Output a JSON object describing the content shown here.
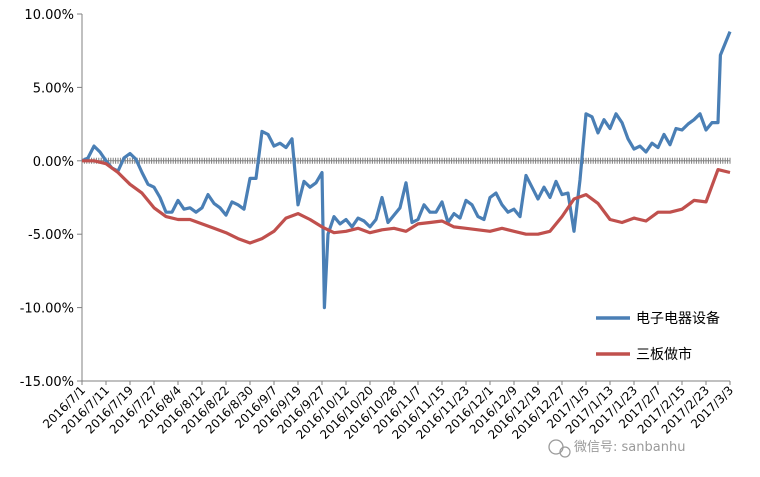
{
  "chart_data": {
    "type": "line",
    "title": "",
    "xlabel": "",
    "ylabel": "",
    "ylim": [
      -15,
      10
    ],
    "y_ticks": [
      10,
      5,
      0,
      -5,
      -10,
      -15
    ],
    "y_tick_labels": [
      "10.00%",
      "5.00%",
      "0.00%",
      "-5.00%",
      "-10.00%",
      "-15.00%"
    ],
    "x_tick_labels": [
      "2016/7/1",
      "2016/7/11",
      "2016/7/19",
      "2016/7/27",
      "2016/8/4",
      "2016/8/12",
      "2016/8/22",
      "2016/8/30",
      "2016/9/7",
      "2016/9/19",
      "2016/9/27",
      "2016/10/12",
      "2016/10/20",
      "2016/10/28",
      "2016/11/7",
      "2016/11/15",
      "2016/11/23",
      "2016/12/1",
      "2016/12/9",
      "2016/12/19",
      "2016/12/27",
      "2017/1/5",
      "2017/1/13",
      "2017/1/23",
      "2017/2/7",
      "2017/2/15",
      "2017/2/23",
      "2017/3/3"
    ],
    "grid": false,
    "legend_position": "right",
    "series": [
      {
        "name": "电子电器设备",
        "color": "#4a7fb5",
        "points": [
          [
            0,
            0
          ],
          [
            0.25,
            0.2
          ],
          [
            0.5,
            1.0
          ],
          [
            0.75,
            0.6
          ],
          [
            1,
            0
          ],
          [
            1.25,
            -0.5
          ],
          [
            1.5,
            -0.7
          ],
          [
            1.75,
            0.2
          ],
          [
            2,
            0.5
          ],
          [
            2.25,
            0.1
          ],
          [
            2.5,
            -0.8
          ],
          [
            2.75,
            -1.6
          ],
          [
            3,
            -1.8
          ],
          [
            3.25,
            -2.5
          ],
          [
            3.5,
            -3.5
          ],
          [
            3.75,
            -3.5
          ],
          [
            4,
            -2.7
          ],
          [
            4.25,
            -3.3
          ],
          [
            4.5,
            -3.2
          ],
          [
            4.75,
            -3.5
          ],
          [
            5,
            -3.2
          ],
          [
            5.25,
            -2.3
          ],
          [
            5.5,
            -2.9
          ],
          [
            5.75,
            -3.2
          ],
          [
            6,
            -3.7
          ],
          [
            6.25,
            -2.8
          ],
          [
            6.5,
            -3.0
          ],
          [
            6.75,
            -3.3
          ],
          [
            7,
            -1.2
          ],
          [
            7.25,
            -1.2
          ],
          [
            7.5,
            2.0
          ],
          [
            7.75,
            1.8
          ],
          [
            8,
            1.0
          ],
          [
            8.25,
            1.2
          ],
          [
            8.5,
            0.9
          ],
          [
            8.75,
            1.5
          ],
          [
            9,
            -3.0
          ],
          [
            9.25,
            -1.4
          ],
          [
            9.5,
            -1.8
          ],
          [
            9.75,
            -1.5
          ],
          [
            10,
            -0.8
          ],
          [
            10.1,
            -10.0
          ],
          [
            10.25,
            -5.0
          ],
          [
            10.5,
            -3.8
          ],
          [
            10.75,
            -4.3
          ],
          [
            11,
            -4.0
          ],
          [
            11.25,
            -4.5
          ],
          [
            11.5,
            -3.9
          ],
          [
            11.75,
            -4.1
          ],
          [
            12,
            -4.5
          ],
          [
            12.25,
            -4.0
          ],
          [
            12.5,
            -2.5
          ],
          [
            12.75,
            -4.2
          ],
          [
            13,
            -3.7
          ],
          [
            13.25,
            -3.2
          ],
          [
            13.5,
            -1.5
          ],
          [
            13.75,
            -4.2
          ],
          [
            14,
            -4.0
          ],
          [
            14.25,
            -3.0
          ],
          [
            14.5,
            -3.5
          ],
          [
            14.75,
            -3.5
          ],
          [
            15,
            -2.8
          ],
          [
            15.25,
            -4.2
          ],
          [
            15.5,
            -3.6
          ],
          [
            15.75,
            -3.9
          ],
          [
            16,
            -2.7
          ],
          [
            16.25,
            -3.0
          ],
          [
            16.5,
            -3.8
          ],
          [
            16.75,
            -4.0
          ],
          [
            17,
            -2.5
          ],
          [
            17.25,
            -2.2
          ],
          [
            17.5,
            -3.0
          ],
          [
            17.75,
            -3.5
          ],
          [
            18,
            -3.3
          ],
          [
            18.25,
            -3.8
          ],
          [
            18.5,
            -1.0
          ],
          [
            18.75,
            -1.8
          ],
          [
            19,
            -2.6
          ],
          [
            19.25,
            -1.8
          ],
          [
            19.5,
            -2.5
          ],
          [
            19.75,
            -1.4
          ],
          [
            20,
            -2.3
          ],
          [
            20.25,
            -2.2
          ],
          [
            20.5,
            -4.8
          ],
          [
            20.75,
            -1.3
          ],
          [
            21,
            3.2
          ],
          [
            21.25,
            3.0
          ],
          [
            21.5,
            1.9
          ],
          [
            21.75,
            2.8
          ],
          [
            22,
            2.2
          ],
          [
            22.25,
            3.2
          ],
          [
            22.5,
            2.6
          ],
          [
            22.75,
            1.5
          ],
          [
            23,
            0.8
          ],
          [
            23.25,
            1.0
          ],
          [
            23.5,
            0.6
          ],
          [
            23.75,
            1.2
          ],
          [
            24,
            0.9
          ],
          [
            24.25,
            1.8
          ],
          [
            24.5,
            1.1
          ],
          [
            24.75,
            2.2
          ],
          [
            25,
            2.1
          ],
          [
            25.25,
            2.5
          ],
          [
            25.5,
            2.8
          ],
          [
            25.75,
            3.2
          ],
          [
            26,
            2.1
          ],
          [
            26.25,
            2.6
          ],
          [
            26.5,
            2.6
          ],
          [
            26.6,
            7.2
          ],
          [
            26.8,
            8.0
          ],
          [
            27,
            8.8
          ]
        ]
      },
      {
        "name": "三板做市",
        "color": "#c0504d",
        "points": [
          [
            0,
            0
          ],
          [
            0.5,
            0
          ],
          [
            1,
            -0.2
          ],
          [
            1.5,
            -0.8
          ],
          [
            2,
            -1.6
          ],
          [
            2.5,
            -2.2
          ],
          [
            3,
            -3.2
          ],
          [
            3.5,
            -3.8
          ],
          [
            4,
            -4.0
          ],
          [
            4.5,
            -4.0
          ],
          [
            5,
            -4.3
          ],
          [
            5.5,
            -4.6
          ],
          [
            6,
            -4.9
          ],
          [
            6.5,
            -5.3
          ],
          [
            7,
            -5.6
          ],
          [
            7.5,
            -5.3
          ],
          [
            8,
            -4.8
          ],
          [
            8.5,
            -3.9
          ],
          [
            9,
            -3.6
          ],
          [
            9.5,
            -4.0
          ],
          [
            10,
            -4.5
          ],
          [
            10.5,
            -4.9
          ],
          [
            11,
            -4.8
          ],
          [
            11.5,
            -4.6
          ],
          [
            12,
            -4.9
          ],
          [
            12.5,
            -4.7
          ],
          [
            13,
            -4.6
          ],
          [
            13.5,
            -4.8
          ],
          [
            14,
            -4.3
          ],
          [
            14.5,
            -4.2
          ],
          [
            15,
            -4.1
          ],
          [
            15.5,
            -4.5
          ],
          [
            16,
            -4.6
          ],
          [
            16.5,
            -4.7
          ],
          [
            17,
            -4.8
          ],
          [
            17.5,
            -4.6
          ],
          [
            18,
            -4.8
          ],
          [
            18.5,
            -5.0
          ],
          [
            19,
            -5.0
          ],
          [
            19.5,
            -4.8
          ],
          [
            20,
            -3.8
          ],
          [
            20.5,
            -2.6
          ],
          [
            21,
            -2.3
          ],
          [
            21.5,
            -2.9
          ],
          [
            22,
            -4.0
          ],
          [
            22.5,
            -4.2
          ],
          [
            23,
            -3.9
          ],
          [
            23.5,
            -4.1
          ],
          [
            24,
            -3.5
          ],
          [
            24.5,
            -3.5
          ],
          [
            25,
            -3.3
          ],
          [
            25.5,
            -2.7
          ],
          [
            26,
            -2.8
          ],
          [
            26.5,
            -0.6
          ],
          [
            27,
            -0.8
          ]
        ]
      }
    ],
    "reference_line": {
      "value": 0,
      "color": "#7f7f7f"
    }
  },
  "watermark": {
    "text": "微信号: sanbanhu",
    "icon": "wechat-icon"
  }
}
